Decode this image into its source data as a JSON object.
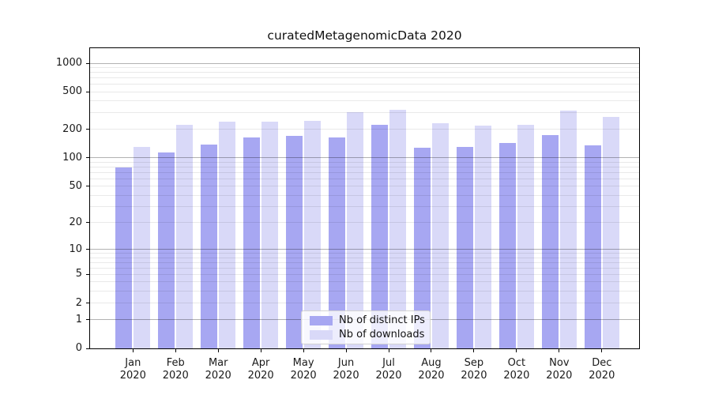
{
  "title": "curatedMetagenomicData 2020",
  "colors": {
    "distinct_ips_bar": "#a7a7f2",
    "downloads_bar": "#d9d9f8",
    "spine": "#000000",
    "axis_text": "#1a1a1a",
    "major_grid": "#b3b3b3",
    "minor_grid": "#e9e9e9"
  },
  "legend": {
    "position": "lower center",
    "items": [
      {
        "label": "Nb of distinct IPs",
        "swatch": "distinct_ips_bar"
      },
      {
        "label": "Nb of downloads",
        "swatch": "downloads_bar"
      }
    ]
  },
  "chart_data": {
    "type": "bar",
    "title": "curatedMetagenomicData 2020",
    "xlabel": "",
    "ylabel": "",
    "categories": [
      "Jan",
      "Feb",
      "Mar",
      "Apr",
      "May",
      "Jun",
      "Jul",
      "Aug",
      "Sep",
      "Oct",
      "Nov",
      "Dec"
    ],
    "year": "2020",
    "series": [
      {
        "name": "Nb of distinct IPs",
        "color_key": "distinct_ips_bar",
        "values": [
          79,
          115,
          139,
          164,
          170,
          164,
          225,
          129,
          131,
          144,
          176,
          136
        ]
      },
      {
        "name": "Nb of downloads",
        "color_key": "downloads_bar",
        "values": [
          132,
          225,
          240,
          243,
          248,
          305,
          323,
          233,
          220,
          223,
          317,
          270
        ]
      }
    ],
    "y_scale": "log10(1+x)",
    "y_ticks": [
      0,
      1,
      2,
      5,
      10,
      20,
      50,
      100,
      200,
      500,
      1000
    ],
    "y_max": 1470,
    "major_gridlines": [
      1,
      10,
      100,
      1000
    ],
    "minor_gridlines": [
      2,
      3,
      4,
      5,
      6,
      7,
      8,
      9,
      20,
      30,
      40,
      50,
      60,
      70,
      80,
      90,
      200,
      300,
      400,
      500,
      600,
      700,
      800,
      900
    ],
    "grid": "on",
    "legend_position": "lower center"
  }
}
